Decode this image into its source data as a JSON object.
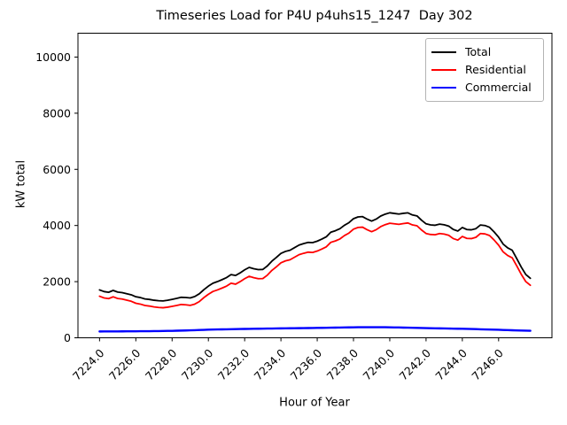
{
  "title": "Timeseries Load for P4U p4uhs15_1247  Day 302",
  "chart_data": {
    "type": "line",
    "title": "Timeseries Load for P4U p4uhs15_1247  Day 302",
    "xlabel": "Hour of Year",
    "ylabel": "kW total",
    "xlim": [
      7222.81,
      7248.94
    ],
    "ylim": [
      0,
      10850
    ],
    "grid": false,
    "legend_position": "upper right",
    "x_tick_rotation": 45,
    "x_ticks": [
      7224,
      7226,
      7228,
      7230,
      7232,
      7234,
      7236,
      7238,
      7240,
      7242,
      7244,
      7246
    ],
    "x_tick_labels": [
      "7224.0",
      "7226.0",
      "7228.0",
      "7230.0",
      "7232.0",
      "7234.0",
      "7236.0",
      "7238.0",
      "7240.0",
      "7242.0",
      "7244.0",
      "7246.0"
    ],
    "y_ticks": [
      0,
      2000,
      4000,
      6000,
      8000,
      10000
    ],
    "y_tick_labels": [
      "0",
      "2000",
      "4000",
      "6000",
      "8000",
      "10000"
    ],
    "x_start": 7224.0,
    "x_step_hours": 0.25,
    "n_points": 96,
    "series": [
      {
        "name": "Total",
        "color": "#000000",
        "values": [
          1705,
          1646,
          1621,
          1687,
          1628,
          1609,
          1570,
          1531,
          1462,
          1433,
          1385,
          1366,
          1338,
          1320,
          1313,
          1335,
          1368,
          1402,
          1441,
          1435,
          1420,
          1471,
          1567,
          1713,
          1840,
          1943,
          2002,
          2070,
          2143,
          2251,
          2219,
          2312,
          2420,
          2508,
          2460,
          2428,
          2435,
          2558,
          2730,
          2863,
          3005,
          3077,
          3119,
          3211,
          3303,
          3355,
          3397,
          3390,
          3442,
          3515,
          3598,
          3760,
          3813,
          3886,
          4008,
          4101,
          4243,
          4305,
          4316,
          4227,
          4158,
          4228,
          4337,
          4405,
          4453,
          4430,
          4407,
          4433,
          4450,
          4376,
          4342,
          4189,
          4060,
          4022,
          4008,
          4050,
          4025,
          3979,
          3860,
          3803,
          3930,
          3856,
          3846,
          3888,
          4018,
          3999,
          3936,
          3773,
          3585,
          3339,
          3204,
          3118,
          2822,
          2518,
          2254,
          2120
        ]
      },
      {
        "name": "Residential",
        "color": "#ff0000",
        "values": [
          1480,
          1420,
          1395,
          1460,
          1400,
          1380,
          1340,
          1300,
          1230,
          1200,
          1150,
          1130,
          1100,
          1080,
          1070,
          1090,
          1120,
          1150,
          1185,
          1175,
          1155,
          1200,
          1290,
          1430,
          1550,
          1650,
          1705,
          1770,
          1840,
          1945,
          1910,
          2000,
          2105,
          2190,
          2140,
          2105,
          2110,
          2230,
          2400,
          2530,
          2670,
          2740,
          2780,
          2870,
          2960,
          3010,
          3050,
          3040,
          3090,
          3160,
          3240,
          3400,
          3450,
          3520,
          3640,
          3730,
          3870,
          3930,
          3940,
          3850,
          3780,
          3850,
          3960,
          4030,
          4080,
          4060,
          4040,
          4070,
          4090,
          4020,
          3990,
          3840,
          3715,
          3680,
          3670,
          3715,
          3693,
          3650,
          3534,
          3480,
          3610,
          3540,
          3534,
          3580,
          3715,
          3700,
          3642,
          3483,
          3300,
          3060,
          2930,
          2850,
          2560,
          2260,
          2000,
          1870
        ]
      },
      {
        "name": "Commercial",
        "color": "#0000ff",
        "values": [
          225,
          226,
          226,
          227,
          228,
          229,
          230,
          231,
          232,
          233,
          235,
          236,
          238,
          240,
          243,
          245,
          248,
          252,
          256,
          260,
          265,
          271,
          277,
          283,
          290,
          293,
          297,
          300,
          303,
          306,
          309,
          312,
          315,
          318,
          320,
          323,
          325,
          328,
          330,
          333,
          335,
          337,
          339,
          341,
          343,
          345,
          347,
          350,
          352,
          355,
          358,
          360,
          363,
          366,
          368,
          371,
          373,
          375,
          376,
          377,
          378,
          378,
          377,
          375,
          373,
          370,
          367,
          363,
          360,
          356,
          352,
          349,
          345,
          342,
          338,
          335,
          332,
          329,
          326,
          323,
          320,
          316,
          312,
          308,
          303,
          299,
          294,
          290,
          285,
          279,
          274,
          268,
          262,
          258,
          254,
          250
        ]
      }
    ]
  }
}
